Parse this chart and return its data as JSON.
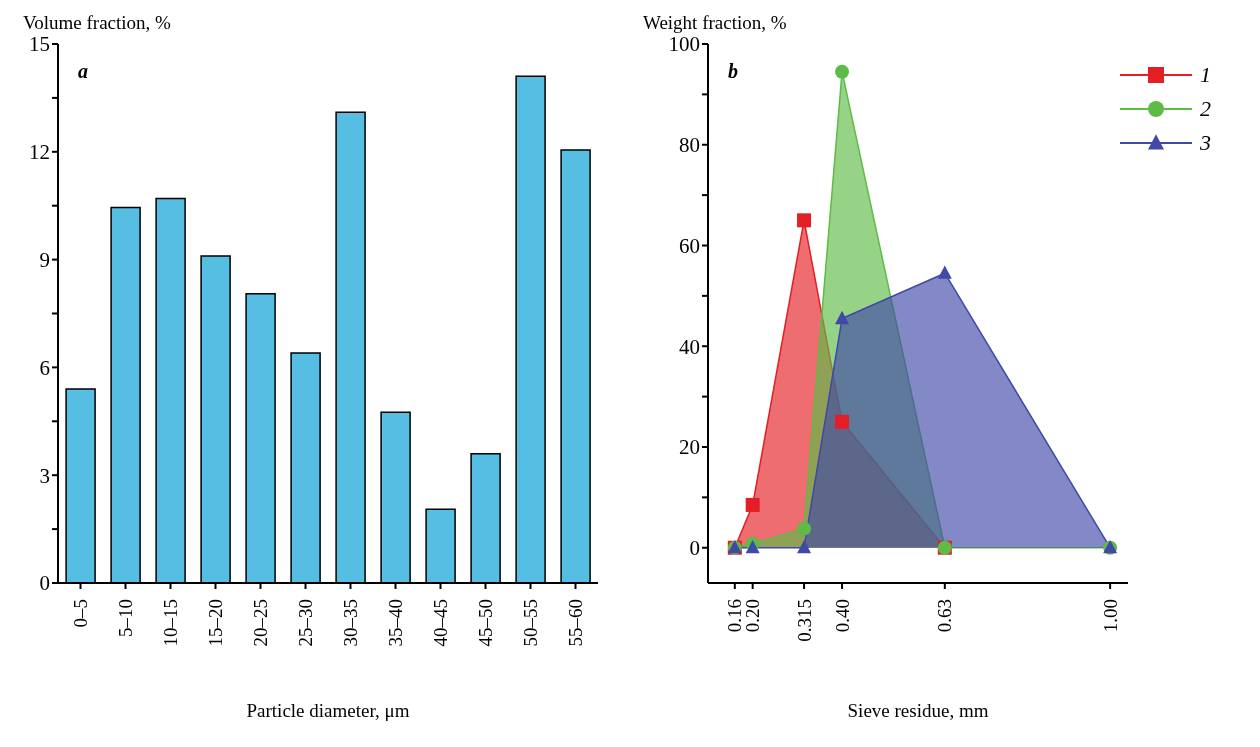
{
  "chart_data": [
    {
      "type": "bar",
      "title": "a",
      "ylabel": "Volume fraction, %",
      "xlabel": "Particle diameter, μm",
      "categories": [
        "0–5",
        "5–10",
        "10–15",
        "15–20",
        "20–25",
        "25–30",
        "30–35",
        "35–40",
        "40–45",
        "45–50",
        "50–55",
        "55–60"
      ],
      "values": [
        5.4,
        10.45,
        10.7,
        9.1,
        8.05,
        6.4,
        13.1,
        4.75,
        2.05,
        3.6,
        14.1,
        12.05
      ],
      "color": "#56bde3",
      "ylim": [
        0,
        15
      ],
      "yticks": [
        0,
        {
          "value": 1.5,
          "label": null
        },
        3,
        {
          "value": 4.5,
          "label": null
        },
        6,
        {
          "value": 7.5,
          "label": null
        },
        9,
        {
          "value": 10.5,
          "label": null
        },
        12,
        {
          "value": 13.5,
          "label": null
        },
        15
      ],
      "orientation": "vertical"
    },
    {
      "type": "area",
      "title": "b",
      "ylabel": "Weight fraction, %",
      "xlabel": "Sieve residue, mm",
      "x": [
        0.16,
        0.2,
        0.315,
        0.4,
        0.63,
        1.0
      ],
      "series": [
        {
          "name": "1",
          "color": "#e31e24",
          "marker": "square",
          "values": [
            0,
            8.5,
            65,
            25,
            0,
            null
          ]
        },
        {
          "name": "2",
          "color": "#5dbb46",
          "marker": "circle",
          "values": [
            0,
            0.8,
            3.8,
            94.5,
            0,
            0
          ]
        },
        {
          "name": "3",
          "color": "#4048a8",
          "marker": "triangle",
          "values": [
            0,
            0,
            0,
            45.5,
            54.5,
            0
          ]
        }
      ],
      "xlim": [
        0.1,
        1.04
      ],
      "xticks": [
        {
          "value": 0.16,
          "label": "0.16"
        },
        {
          "value": 0.2,
          "label": "0.20"
        },
        {
          "value": 0.315,
          "label": "0.315"
        },
        {
          "value": 0.4,
          "label": "0.40"
        },
        {
          "value": 0.63,
          "label": "0.63"
        },
        {
          "value": 1.0,
          "label": "1.00"
        }
      ],
      "ylim": [
        -7,
        100
      ],
      "yticks": [
        0,
        {
          "value": 10,
          "label": null
        },
        20,
        {
          "value": 30,
          "label": null
        },
        40,
        {
          "value": 50,
          "label": null
        },
        60,
        {
          "value": 70,
          "label": null
        },
        80,
        {
          "value": 90,
          "label": null
        },
        100
      ],
      "legend": "top right",
      "line_style": "solid"
    }
  ]
}
